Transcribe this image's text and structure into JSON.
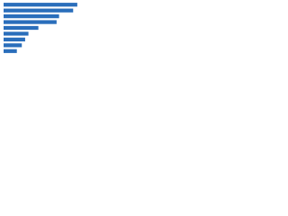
{
  "chart_data": {
    "type": "bar",
    "orientation": "horizontal",
    "categories": [
      null,
      null,
      null,
      null,
      null,
      null,
      null,
      null,
      null
    ],
    "values": [
      89,
      84,
      67,
      64,
      42,
      30,
      26,
      22,
      16
    ],
    "color": "#2a6ebb",
    "xlim": [
      0,
      100
    ]
  }
}
